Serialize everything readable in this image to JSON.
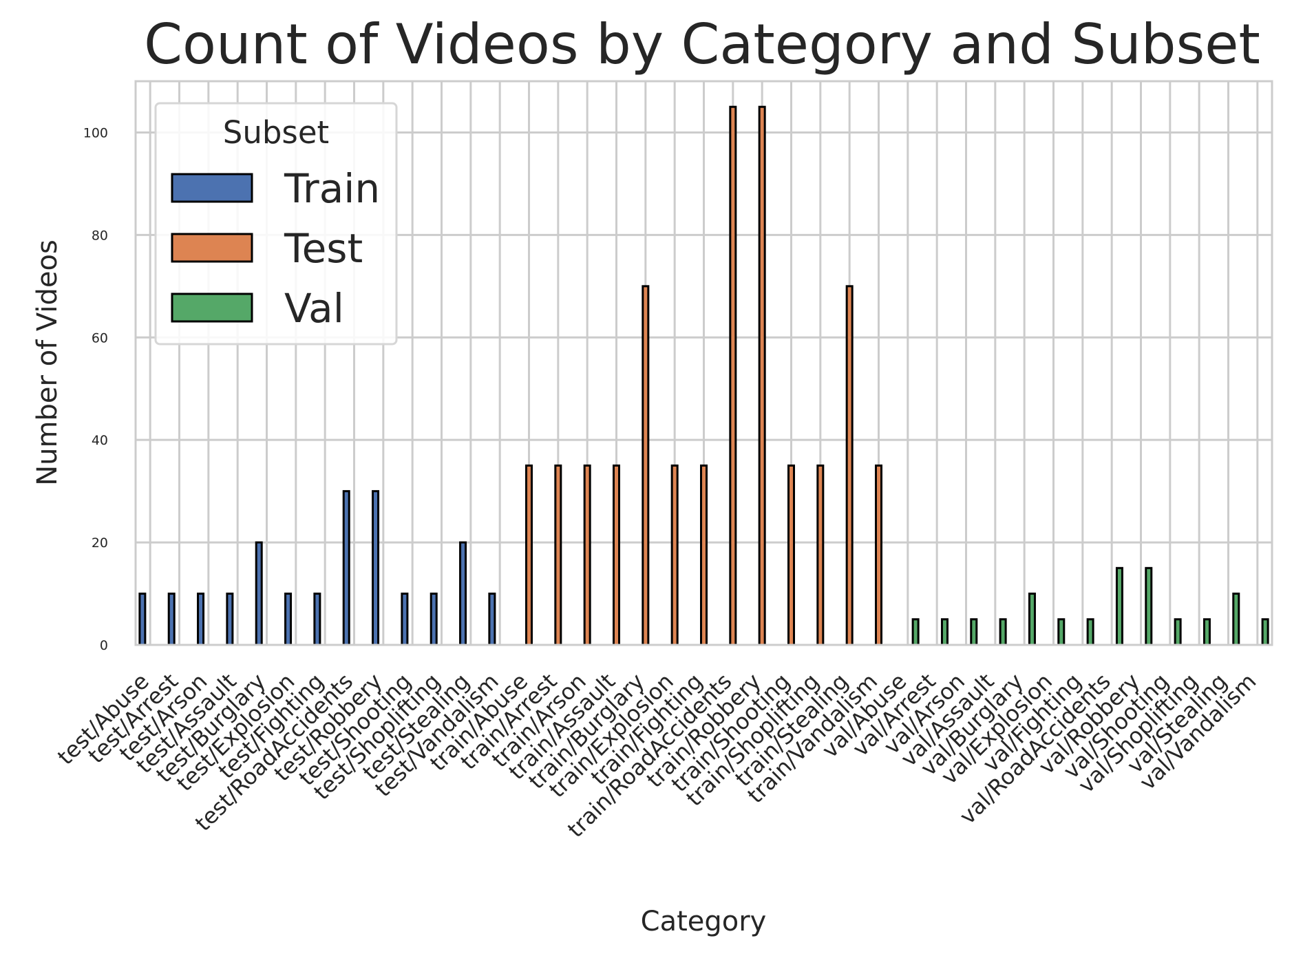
{
  "chart_data": {
    "type": "bar",
    "title": "Count of Videos by Category and Subset",
    "xlabel": "Category",
    "ylabel": "Number of Videos",
    "ylim": [
      0,
      110
    ],
    "yticks": [
      0,
      20,
      40,
      60,
      80,
      100
    ],
    "grid": true,
    "legend": {
      "title": "Subset",
      "placement": "top-left"
    },
    "categories": [
      "test/Abuse",
      "test/Arrest",
      "test/Arson",
      "test/Assault",
      "test/Burglary",
      "test/Explosion",
      "test/Fighting",
      "test/RoadAccidents",
      "test/Robbery",
      "test/Shooting",
      "test/Shoplifting",
      "test/Stealing",
      "test/Vandalism",
      "train/Abuse",
      "train/Arrest",
      "train/Arson",
      "train/Assault",
      "train/Burglary",
      "train/Explosion",
      "train/Fighting",
      "train/RoadAccidents",
      "train/Robbery",
      "train/Shooting",
      "train/Shoplifting",
      "train/Stealing",
      "train/Vandalism",
      "val/Abuse",
      "val/Arrest",
      "val/Arson",
      "val/Assault",
      "val/Burglary",
      "val/Explosion",
      "val/Fighting",
      "val/RoadAccidents",
      "val/Robbery",
      "val/Shooting",
      "val/Shoplifting",
      "val/Stealing",
      "val/Vandalism"
    ],
    "series": [
      {
        "name": "Train",
        "color": "#4c72b0",
        "values": [
          10,
          10,
          10,
          10,
          20,
          10,
          10,
          30,
          30,
          10,
          10,
          20,
          10,
          0,
          0,
          0,
          0,
          0,
          0,
          0,
          0,
          0,
          0,
          0,
          0,
          0,
          0,
          0,
          0,
          0,
          0,
          0,
          0,
          0,
          0,
          0,
          0,
          0,
          0
        ]
      },
      {
        "name": "Test",
        "color": "#dd8452",
        "values": [
          0,
          0,
          0,
          0,
          0,
          0,
          0,
          0,
          0,
          0,
          0,
          0,
          0,
          35,
          35,
          35,
          35,
          70,
          35,
          35,
          105,
          105,
          35,
          35,
          70,
          35,
          0,
          0,
          0,
          0,
          0,
          0,
          0,
          0,
          0,
          0,
          0,
          0,
          0
        ]
      },
      {
        "name": "Val",
        "color": "#55a868",
        "values": [
          0,
          0,
          0,
          0,
          0,
          0,
          0,
          0,
          0,
          0,
          0,
          0,
          0,
          0,
          0,
          0,
          0,
          0,
          0,
          0,
          0,
          0,
          0,
          0,
          0,
          0,
          5,
          5,
          5,
          5,
          10,
          5,
          5,
          15,
          15,
          5,
          5,
          10,
          5
        ]
      }
    ]
  }
}
